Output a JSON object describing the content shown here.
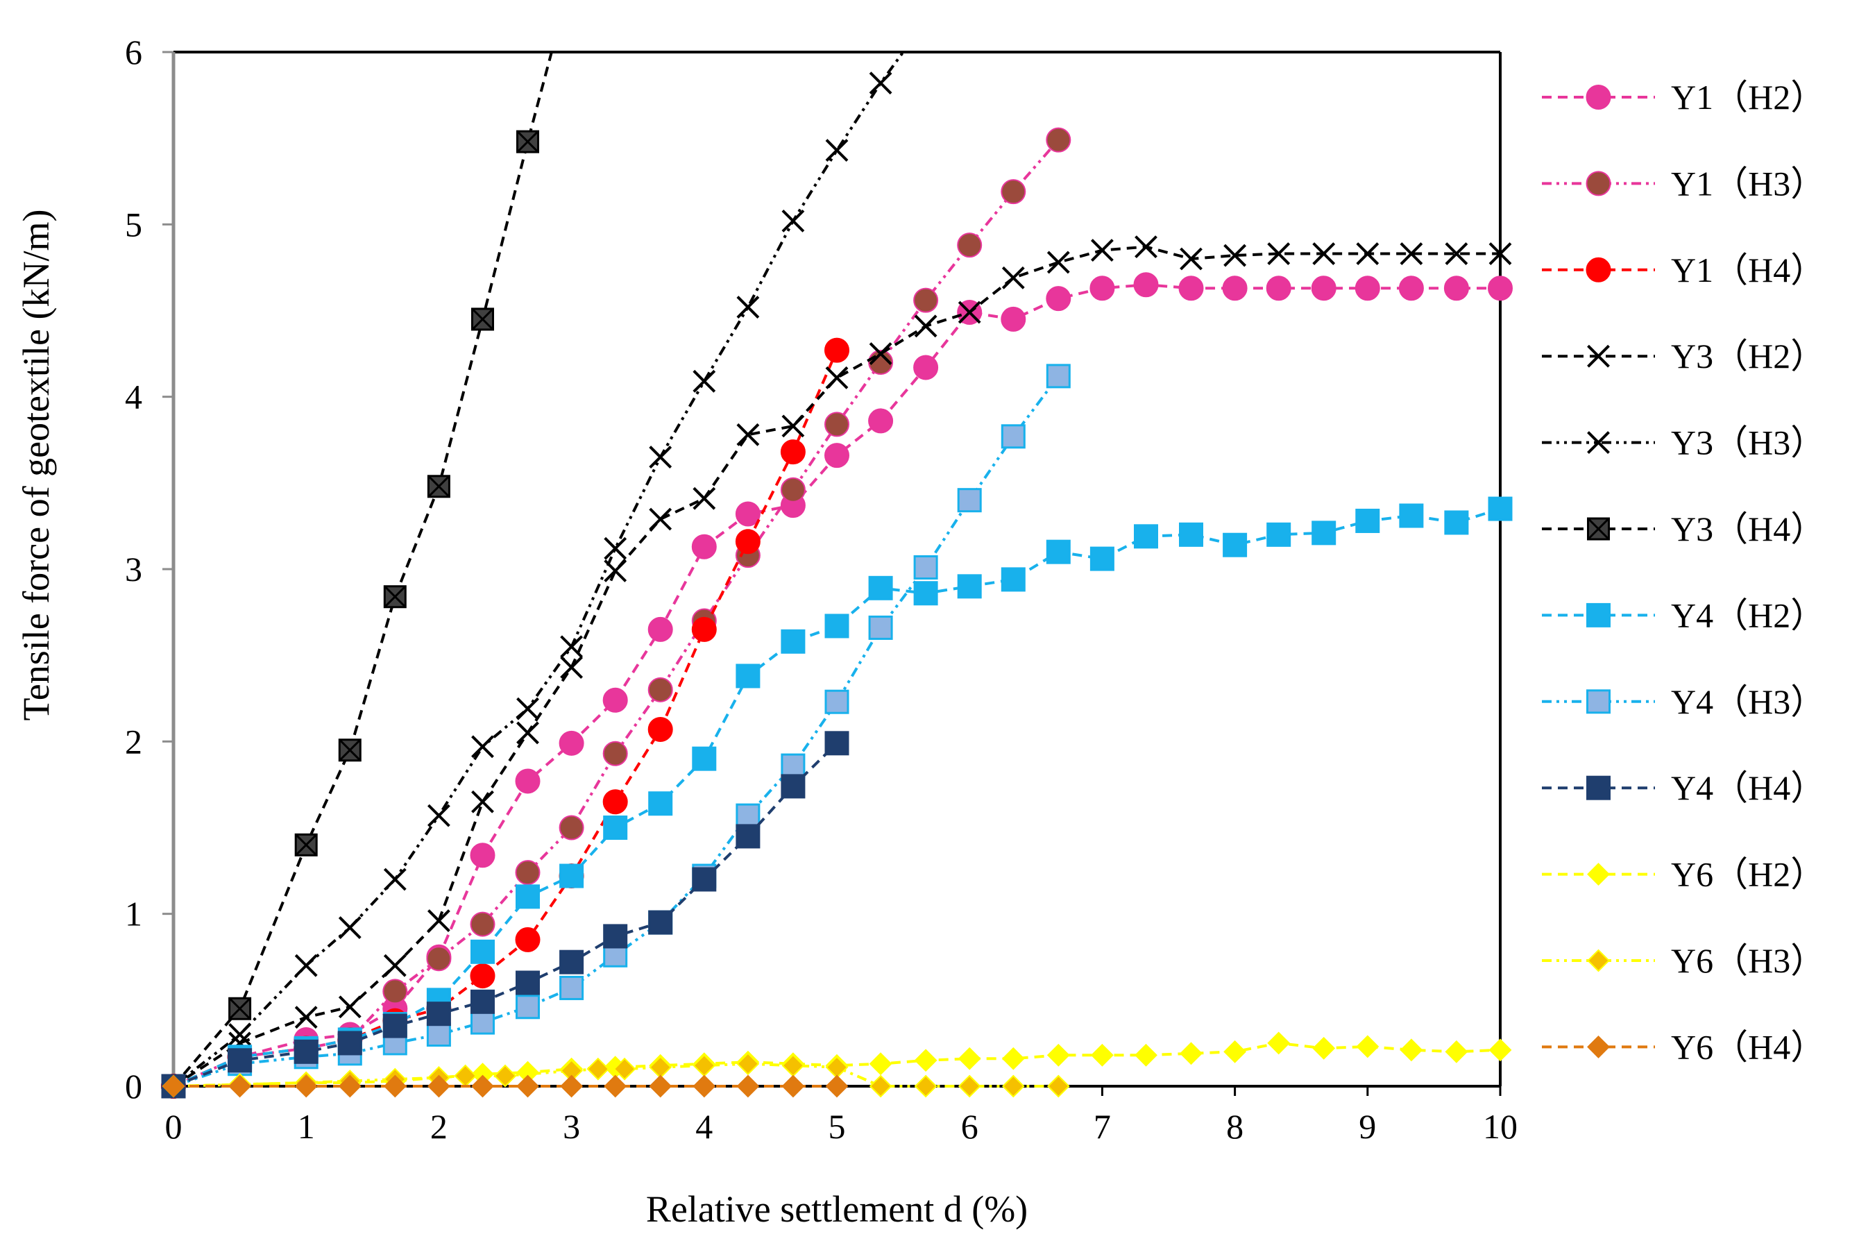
{
  "chart_data": {
    "type": "line",
    "title": "",
    "xlabel": "Relative settlement d (%)",
    "ylabel": "Tensile force of geotextile (kN/m)",
    "xlim": [
      0,
      10
    ],
    "ylim": [
      0,
      6
    ],
    "xticks": [
      "0",
      "1",
      "2",
      "3",
      "4",
      "5",
      "6",
      "7",
      "8",
      "9",
      "10"
    ],
    "yticks": [
      "0",
      "1",
      "2",
      "3",
      "4",
      "5",
      "6"
    ],
    "grid": false,
    "legend_position": "right",
    "series": [
      {
        "name": "Y1（H2）",
        "color": "#e8369b",
        "dash": "dash",
        "marker": "circle",
        "edge": "#e8369b",
        "x": [
          0,
          0.5,
          1,
          1.33,
          1.67,
          2,
          2.33,
          2.67,
          3,
          3.33,
          3.67,
          4,
          4.33,
          4.67,
          5,
          5.33,
          5.67,
          6,
          6.33,
          6.67,
          7,
          7.33,
          7.67,
          8,
          8.33,
          8.67,
          9,
          9.33,
          9.67,
          10
        ],
        "y": [
          0,
          0.17,
          0.27,
          0.3,
          0.45,
          0.75,
          1.34,
          1.77,
          1.99,
          2.24,
          2.65,
          3.13,
          3.32,
          3.37,
          3.66,
          3.86,
          4.17,
          4.49,
          4.45,
          4.57,
          4.63,
          4.65,
          4.63,
          4.63,
          4.63,
          4.63,
          4.63,
          4.63,
          4.63,
          4.63
        ]
      },
      {
        "name": "Y1（H3）",
        "color": "#e8369b",
        "dash": "dashdotdot",
        "marker": "circle",
        "fill": "#9b4a3c",
        "edge": "#e8369b",
        "x": [
          0,
          0.5,
          1,
          1.33,
          1.67,
          2,
          2.33,
          2.67,
          3,
          3.33,
          3.67,
          4,
          4.33,
          4.67,
          5,
          5.33,
          5.67,
          6,
          6.33,
          6.67
        ],
        "y": [
          0,
          0.17,
          0.22,
          0.27,
          0.55,
          0.74,
          0.94,
          1.24,
          1.5,
          1.93,
          2.3,
          2.7,
          3.08,
          3.46,
          3.84,
          4.2,
          4.56,
          4.88,
          5.19,
          5.49
        ]
      },
      {
        "name": "Y1（H4）",
        "color": "#ff0000",
        "dash": "dash",
        "marker": "circle",
        "edge": "#ff0000",
        "x": [
          0,
          0.5,
          1,
          1.33,
          1.67,
          2,
          2.33,
          2.67,
          3,
          3.33,
          3.67,
          4,
          4.33,
          4.67,
          5
        ],
        "y": [
          0,
          0.17,
          0.22,
          0.27,
          0.38,
          0.45,
          0.64,
          0.85,
          1.22,
          1.65,
          2.07,
          2.65,
          3.16,
          3.68,
          4.27
        ]
      },
      {
        "name": "Y3（H2）",
        "color": "#000000",
        "dash": "dash",
        "marker": "x",
        "edge": "#000000",
        "x": [
          0,
          0.5,
          1,
          1.33,
          1.67,
          2,
          2.33,
          2.67,
          3,
          3.33,
          3.67,
          4,
          4.33,
          4.67,
          5,
          5.33,
          5.67,
          6,
          6.33,
          6.67,
          7,
          7.33,
          7.67,
          8,
          8.33,
          8.67,
          9,
          9.33,
          9.67,
          10
        ],
        "y": [
          0,
          0.25,
          0.4,
          0.46,
          0.7,
          0.96,
          1.65,
          2.05,
          2.43,
          2.99,
          3.29,
          3.41,
          3.78,
          3.83,
          4.11,
          4.25,
          4.41,
          4.49,
          4.69,
          4.78,
          4.85,
          4.87,
          4.8,
          4.82,
          4.83,
          4.83,
          4.83,
          4.83,
          4.83,
          4.83
        ]
      },
      {
        "name": "Y3（H3）",
        "color": "#000000",
        "dash": "dashdotdot",
        "marker": "x",
        "fill": "#c8c8c8",
        "edge": "#000000",
        "x": [
          0,
          0.5,
          1,
          1.33,
          1.67,
          2,
          2.33,
          2.67,
          3,
          3.33,
          3.67,
          4,
          4.33,
          4.67,
          5,
          5.33,
          5.5
        ],
        "y": [
          0,
          0.3,
          0.7,
          0.92,
          1.2,
          1.57,
          1.97,
          2.19,
          2.55,
          3.12,
          3.65,
          4.09,
          4.52,
          5.02,
          5.43,
          5.82,
          6.0
        ]
      },
      {
        "name": "Y3（H4）",
        "color": "#000000",
        "dash": "dash",
        "marker": "square-x",
        "fill": "#404040",
        "edge": "#000000",
        "x": [
          0,
          0.5,
          1,
          1.33,
          1.67,
          2,
          2.33,
          2.67,
          2.85
        ],
        "y": [
          0,
          0.45,
          1.4,
          1.95,
          2.84,
          3.48,
          4.45,
          5.48,
          6.0
        ]
      },
      {
        "name": "Y4（H2）",
        "color": "#18b1ec",
        "dash": "dash",
        "marker": "square",
        "edge": "#18b1ec",
        "x": [
          0,
          0.5,
          1,
          1.33,
          1.67,
          2,
          2.33,
          2.67,
          3,
          3.33,
          3.67,
          4,
          4.33,
          4.67,
          5,
          5.33,
          5.67,
          6,
          6.33,
          6.67,
          7,
          7.33,
          7.67,
          8,
          8.33,
          8.67,
          9,
          9.33,
          9.67,
          10
        ],
        "y": [
          0,
          0.17,
          0.22,
          0.27,
          0.36,
          0.5,
          0.78,
          1.1,
          1.22,
          1.5,
          1.64,
          1.9,
          2.38,
          2.58,
          2.67,
          2.89,
          2.86,
          2.9,
          2.94,
          3.1,
          3.06,
          3.19,
          3.2,
          3.14,
          3.2,
          3.21,
          3.28,
          3.31,
          3.27,
          3.35
        ]
      },
      {
        "name": "Y4（H3）",
        "color": "#18b1ec",
        "dash": "dashdotdot",
        "marker": "square",
        "fill": "#8eb4e3",
        "edge": "#18b1ec",
        "x": [
          0,
          0.5,
          1,
          1.33,
          1.67,
          2,
          2.33,
          2.67,
          3,
          3.33,
          3.67,
          4,
          4.33,
          4.67,
          5,
          5.33,
          5.67,
          6,
          6.33,
          6.67
        ],
        "y": [
          0,
          0.13,
          0.17,
          0.19,
          0.25,
          0.3,
          0.37,
          0.46,
          0.57,
          0.76,
          0.95,
          1.22,
          1.57,
          1.86,
          2.23,
          2.66,
          3.01,
          3.4,
          3.77,
          4.12
        ]
      },
      {
        "name": "Y4（H4）",
        "color": "#1f3e6e",
        "dash": "dash",
        "marker": "square",
        "edge": "#1f3e6e",
        "x": [
          0,
          0.5,
          1,
          1.33,
          1.67,
          2,
          2.33,
          2.67,
          3,
          3.33,
          3.67,
          4,
          4.33,
          4.67,
          5
        ],
        "y": [
          0,
          0.15,
          0.2,
          0.25,
          0.35,
          0.42,
          0.49,
          0.6,
          0.72,
          0.87,
          0.95,
          1.2,
          1.45,
          1.74,
          1.99
        ]
      },
      {
        "name": "Y6（H2）",
        "color": "#ffff00",
        "dash": "dash",
        "marker": "diamond",
        "edge": "#ffff00",
        "x": [
          0,
          0.5,
          1,
          1.33,
          1.67,
          2,
          2.33,
          2.67,
          3,
          3.33,
          3.67,
          4,
          4.33,
          4.67,
          5,
          5.33,
          5.67,
          6,
          6.33,
          6.67,
          7,
          7.33,
          7.67,
          8,
          8.33,
          8.67,
          9,
          9.33,
          9.67,
          10
        ],
        "y": [
          0,
          0.01,
          0.02,
          0.02,
          0.03,
          0.05,
          0.07,
          0.08,
          0.1,
          0.11,
          0.12,
          0.13,
          0.14,
          0.13,
          0.12,
          0.13,
          0.15,
          0.16,
          0.16,
          0.18,
          0.18,
          0.18,
          0.19,
          0.2,
          0.25,
          0.22,
          0.23,
          0.21,
          0.2,
          0.21
        ]
      },
      {
        "name": "Y6（H3）",
        "color": "#ffff00",
        "dash": "dashdotdot",
        "marker": "diamond",
        "fill": "#f5c000",
        "edge": "#ffff00",
        "x": [
          0,
          0.5,
          1,
          1.33,
          1.67,
          2,
          2.2,
          2.5,
          3,
          3.2,
          3.4,
          3.67,
          4,
          4.33,
          4.67,
          5,
          5.33,
          5.67,
          6,
          6.33,
          6.67
        ],
        "y": [
          0,
          0.01,
          0.02,
          0.03,
          0.04,
          0.05,
          0.06,
          0.06,
          0.09,
          0.1,
          0.1,
          0.11,
          0.12,
          0.13,
          0.12,
          0.11,
          0.0,
          0.0,
          0.0,
          0.0,
          0.0
        ]
      },
      {
        "name": "Y6（H4）",
        "color": "#e07a10",
        "dash": "dash",
        "marker": "diamond",
        "edge": "#e07a10",
        "x": [
          0,
          0.5,
          1,
          1.33,
          1.67,
          2,
          2.33,
          2.67,
          3,
          3.33,
          3.67,
          4,
          4.33,
          4.67,
          5
        ],
        "y": [
          0,
          0,
          0,
          0,
          0,
          0,
          0,
          0,
          0,
          0,
          0,
          0,
          0,
          0,
          0
        ]
      }
    ]
  }
}
